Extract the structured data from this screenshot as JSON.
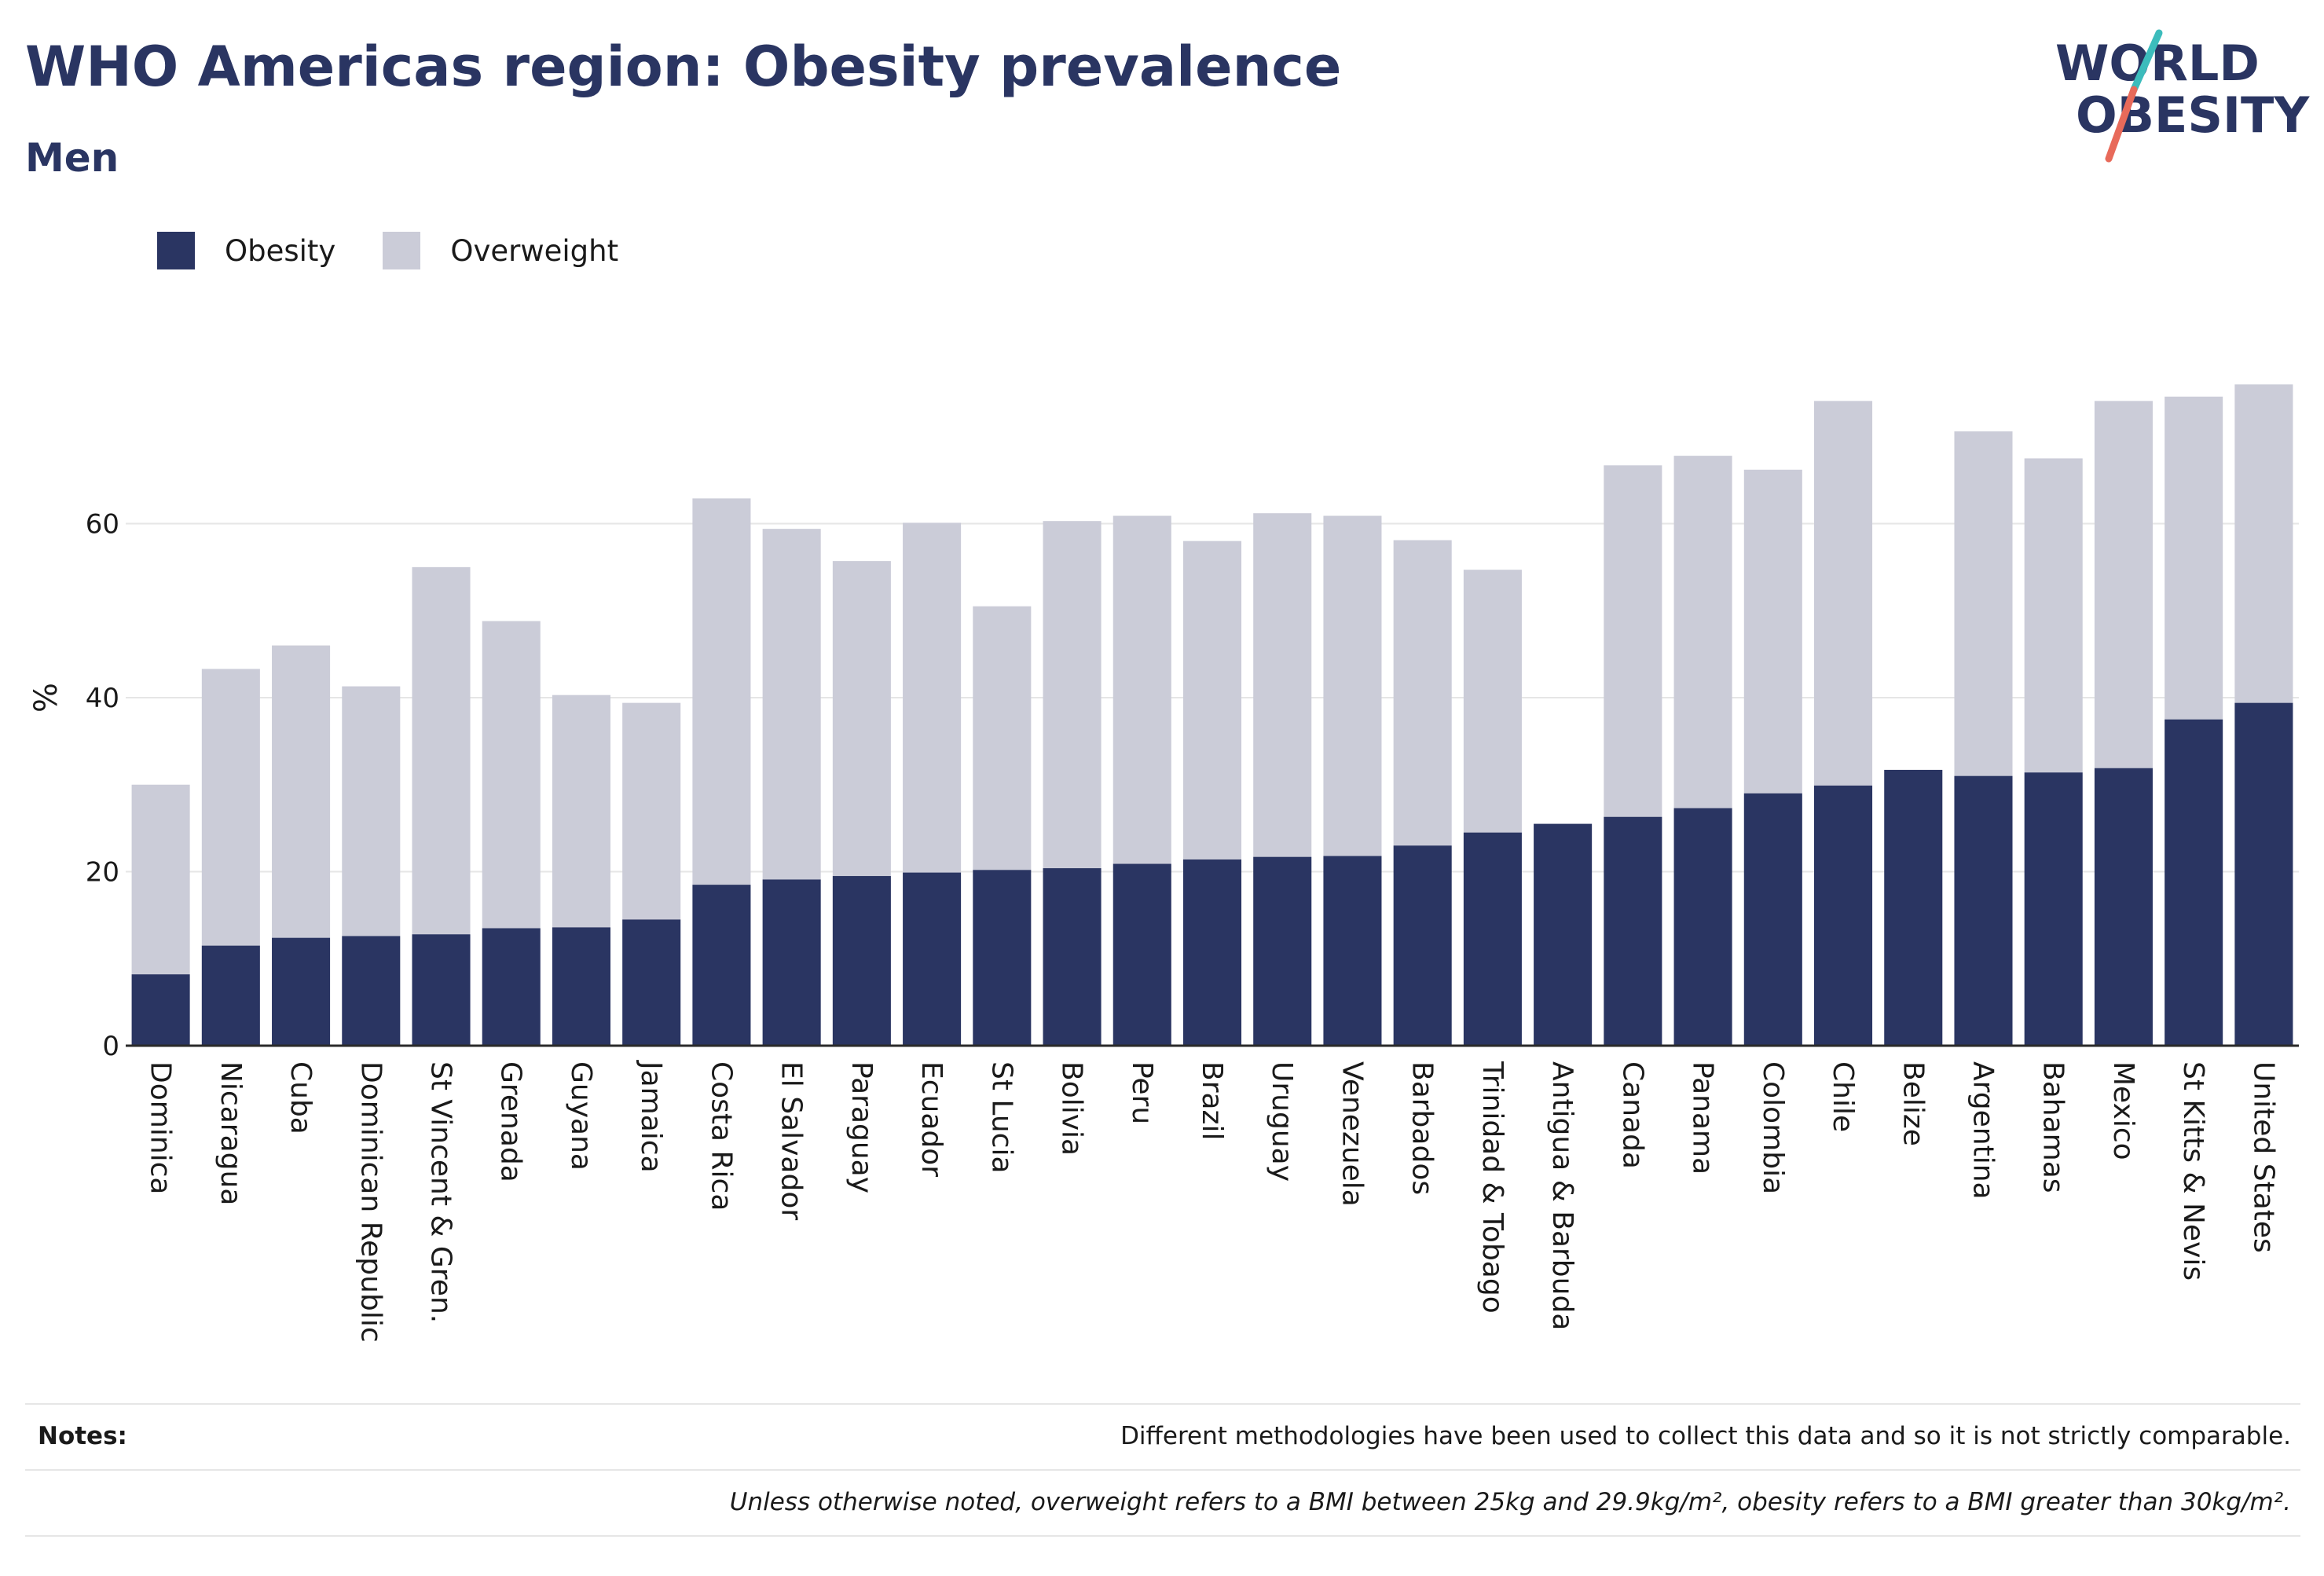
{
  "header": {
    "title": "WHO Americas region: Obesity prevalence",
    "subtitle": "Men",
    "logo_text": [
      "WORLD",
      "OBESITY"
    ]
  },
  "colors": {
    "obesity": "#2a3562",
    "overweight": "#cbccd8",
    "logo_teal": "#3cbcbc",
    "logo_coral": "#e86a5a",
    "grid": "#e6e6e6"
  },
  "legend": [
    {
      "label": "Obesity",
      "color": "#2a3562"
    },
    {
      "label": "Overweight",
      "color": "#cbccd8"
    }
  ],
  "chart_data": {
    "type": "bar",
    "stacked": true,
    "ylabel": "%",
    "xlabel": "",
    "ylim": [
      0,
      80
    ],
    "yticks": [
      0,
      20,
      40,
      60
    ],
    "grid": true,
    "legend_position": "top-left",
    "categories": [
      "Dominica",
      "Nicaragua",
      "Cuba",
      "Dominican Republic",
      "St Vincent & Gren.",
      "Grenada",
      "Guyana",
      "Jamaica",
      "Costa Rica",
      "El Salvador",
      "Paraguay",
      "Ecuador",
      "St Lucia",
      "Bolivia",
      "Peru",
      "Brazil",
      "Uruguay",
      "Venezuela",
      "Barbados",
      "Trinidad & Tobago",
      "Antigua & Barbuda",
      "Canada",
      "Panama",
      "Colombia",
      "Chile",
      "Belize",
      "Argentina",
      "Bahamas",
      "Mexico",
      "St Kitts & Nevis",
      "United States"
    ],
    "series": [
      {
        "name": "Obesity",
        "values": [
          8.2,
          11.5,
          12.4,
          12.6,
          12.8,
          13.5,
          13.6,
          14.5,
          18.5,
          19.1,
          19.5,
          19.9,
          20.2,
          20.4,
          20.9,
          21.4,
          21.7,
          21.8,
          23.0,
          24.5,
          25.5,
          26.3,
          27.3,
          29.0,
          29.9,
          31.7,
          31.0,
          31.4,
          31.9,
          37.5,
          39.4
        ]
      },
      {
        "name": "Overweight",
        "values": [
          21.8,
          31.8,
          33.6,
          28.7,
          42.2,
          35.3,
          26.7,
          24.9,
          44.4,
          40.3,
          36.2,
          40.2,
          30.3,
          39.9,
          40.0,
          36.6,
          39.5,
          39.1,
          35.1,
          30.2,
          0,
          40.4,
          40.5,
          37.2,
          44.2,
          0,
          39.6,
          36.1,
          42.2,
          37.1,
          36.6
        ]
      }
    ]
  },
  "notes": {
    "label": "Notes:",
    "line1": "Different methodologies have been used to collect this data and so it is not strictly comparable.",
    "line2": "Unless otherwise noted, overweight refers to a BMI between 25kg and 29.9kg/m², obesity refers to a BMI greater than 30kg/m²."
  }
}
